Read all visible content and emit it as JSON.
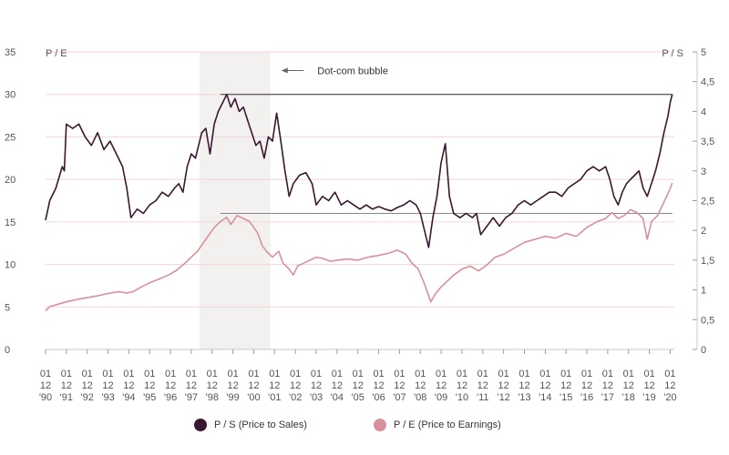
{
  "chart_data": {
    "type": "line",
    "left_axis_label": "P / E",
    "right_axis_label": "P / S",
    "y_left": {
      "min": 0,
      "max": 35,
      "ticks": [
        "0",
        "5",
        "10",
        "15",
        "20",
        "25",
        "30",
        "35"
      ]
    },
    "y_right": {
      "min": 0,
      "max": 5,
      "ticks": [
        "0",
        "0,5",
        "1",
        "1,5",
        "2",
        "2,5",
        "3",
        "3,5",
        "4",
        "4,5",
        "5"
      ]
    },
    "x_range": [
      1990.0,
      2020.2
    ],
    "x_tick_labels": [
      [
        "01",
        "12",
        "'90"
      ],
      [
        "01",
        "12",
        "'91"
      ],
      [
        "01",
        "12",
        "'92"
      ],
      [
        "01",
        "12",
        "'93"
      ],
      [
        "01",
        "12",
        "'94"
      ],
      [
        "01",
        "12",
        "'95"
      ],
      [
        "01",
        "12",
        "'96"
      ],
      [
        "01",
        "12",
        "'97"
      ],
      [
        "01",
        "12",
        "'98"
      ],
      [
        "01",
        "12",
        "'99"
      ],
      [
        "01",
        "12",
        "'00"
      ],
      [
        "01",
        "12",
        "'01"
      ],
      [
        "01",
        "12",
        "'02"
      ],
      [
        "01",
        "12",
        "'03"
      ],
      [
        "01",
        "12",
        "'04"
      ],
      [
        "01",
        "12",
        "'05"
      ],
      [
        "01",
        "12",
        "'06"
      ],
      [
        "01",
        "12",
        "'07"
      ],
      [
        "01",
        "12",
        "'08"
      ],
      [
        "01",
        "12",
        "'09"
      ],
      [
        "01",
        "12",
        "'10"
      ],
      [
        "01",
        "12",
        "'11"
      ],
      [
        "01",
        "12",
        "'12"
      ],
      [
        "01",
        "12",
        "'13"
      ],
      [
        "01",
        "12",
        "'14"
      ],
      [
        "01",
        "12",
        "'15"
      ],
      [
        "01",
        "12",
        "'16"
      ],
      [
        "01",
        "12",
        "'17"
      ],
      [
        "01",
        "12",
        "'18"
      ],
      [
        "01",
        "12",
        "'19"
      ],
      [
        "01",
        "12",
        "'20"
      ]
    ],
    "shaded_period": {
      "from": 1997.4,
      "to": 2000.8
    },
    "annotation": {
      "text": "Dot-com bubble",
      "arrow_from": 2002.4,
      "arrow_to": 2000.8,
      "y": 32.8
    },
    "reference_lines": [
      {
        "axis": "left",
        "value": 30,
        "from": 1998.4,
        "to": 2020.1
      },
      {
        "axis": "left",
        "value": 16,
        "from": 1998.4,
        "to": 2020.1
      }
    ],
    "series": [
      {
        "name": "P / S (Price to Sales)",
        "axis": "left",
        "color": "#3a1730",
        "points": [
          [
            1990.0,
            15.2
          ],
          [
            1990.2,
            17.5
          ],
          [
            1990.5,
            19.0
          ],
          [
            1990.8,
            21.5
          ],
          [
            1990.9,
            21.0
          ],
          [
            1991.0,
            26.5
          ],
          [
            1991.3,
            26.0
          ],
          [
            1991.6,
            26.5
          ],
          [
            1991.9,
            25.0
          ],
          [
            1992.2,
            24.0
          ],
          [
            1992.5,
            25.5
          ],
          [
            1992.8,
            23.5
          ],
          [
            1993.1,
            24.5
          ],
          [
            1993.4,
            23.0
          ],
          [
            1993.7,
            21.5
          ],
          [
            1993.9,
            19.0
          ],
          [
            1994.1,
            15.5
          ],
          [
            1994.4,
            16.5
          ],
          [
            1994.7,
            16.0
          ],
          [
            1995.0,
            17.0
          ],
          [
            1995.3,
            17.5
          ],
          [
            1995.6,
            18.5
          ],
          [
            1995.9,
            18.0
          ],
          [
            1996.2,
            19.0
          ],
          [
            1996.4,
            19.5
          ],
          [
            1996.6,
            18.5
          ],
          [
            1996.8,
            21.5
          ],
          [
            1997.0,
            23.0
          ],
          [
            1997.2,
            22.5
          ],
          [
            1997.5,
            25.5
          ],
          [
            1997.7,
            26.0
          ],
          [
            1997.9,
            23.0
          ],
          [
            1998.1,
            26.5
          ],
          [
            1998.3,
            28.0
          ],
          [
            1998.5,
            29.0
          ],
          [
            1998.7,
            30.0
          ],
          [
            1998.9,
            28.5
          ],
          [
            1999.1,
            29.5
          ],
          [
            1999.3,
            28.0
          ],
          [
            1999.5,
            28.5
          ],
          [
            1999.7,
            27.0
          ],
          [
            1999.9,
            25.5
          ],
          [
            2000.1,
            24.0
          ],
          [
            2000.3,
            24.5
          ],
          [
            2000.5,
            22.5
          ],
          [
            2000.7,
            25.0
          ],
          [
            2000.9,
            24.5
          ],
          [
            2001.1,
            27.8
          ],
          [
            2001.3,
            24.5
          ],
          [
            2001.5,
            21.0
          ],
          [
            2001.7,
            18.0
          ],
          [
            2001.9,
            19.5
          ],
          [
            2002.2,
            20.5
          ],
          [
            2002.5,
            20.8
          ],
          [
            2002.8,
            19.5
          ],
          [
            2003.0,
            17.0
          ],
          [
            2003.3,
            18.0
          ],
          [
            2003.6,
            17.5
          ],
          [
            2003.9,
            18.5
          ],
          [
            2004.2,
            17.0
          ],
          [
            2004.5,
            17.5
          ],
          [
            2004.8,
            17.0
          ],
          [
            2005.1,
            16.5
          ],
          [
            2005.4,
            17.0
          ],
          [
            2005.7,
            16.5
          ],
          [
            2006.0,
            16.8
          ],
          [
            2006.3,
            16.5
          ],
          [
            2006.6,
            16.3
          ],
          [
            2006.9,
            16.7
          ],
          [
            2007.2,
            17.0
          ],
          [
            2007.5,
            17.5
          ],
          [
            2007.8,
            17.0
          ],
          [
            2008.0,
            16.0
          ],
          [
            2008.2,
            14.0
          ],
          [
            2008.4,
            12.0
          ],
          [
            2008.6,
            15.5
          ],
          [
            2008.8,
            18.0
          ],
          [
            2009.0,
            22.0
          ],
          [
            2009.2,
            24.2
          ],
          [
            2009.4,
            18.0
          ],
          [
            2009.6,
            16.0
          ],
          [
            2009.9,
            15.5
          ],
          [
            2010.2,
            16.0
          ],
          [
            2010.5,
            15.5
          ],
          [
            2010.7,
            16.0
          ],
          [
            2010.9,
            13.5
          ],
          [
            2011.2,
            14.5
          ],
          [
            2011.5,
            15.5
          ],
          [
            2011.8,
            14.5
          ],
          [
            2012.1,
            15.5
          ],
          [
            2012.4,
            16.0
          ],
          [
            2012.7,
            17.0
          ],
          [
            2013.0,
            17.5
          ],
          [
            2013.3,
            17.0
          ],
          [
            2013.6,
            17.5
          ],
          [
            2013.9,
            18.0
          ],
          [
            2014.2,
            18.5
          ],
          [
            2014.5,
            18.5
          ],
          [
            2014.8,
            18.0
          ],
          [
            2015.1,
            19.0
          ],
          [
            2015.4,
            19.5
          ],
          [
            2015.7,
            20.0
          ],
          [
            2016.0,
            21.0
          ],
          [
            2016.3,
            21.5
          ],
          [
            2016.6,
            21.0
          ],
          [
            2016.9,
            21.5
          ],
          [
            2017.1,
            20.0
          ],
          [
            2017.3,
            18.0
          ],
          [
            2017.5,
            17.0
          ],
          [
            2017.7,
            18.5
          ],
          [
            2017.9,
            19.5
          ],
          [
            2018.1,
            20.0
          ],
          [
            2018.3,
            20.5
          ],
          [
            2018.5,
            21.0
          ],
          [
            2018.7,
            19.0
          ],
          [
            2018.9,
            18.0
          ],
          [
            2019.1,
            19.5
          ],
          [
            2019.3,
            21.0
          ],
          [
            2019.5,
            23.0
          ],
          [
            2019.7,
            25.5
          ],
          [
            2019.9,
            27.5
          ],
          [
            2020.0,
            29.0
          ],
          [
            2020.1,
            30.0
          ]
        ]
      },
      {
        "name": "P / E (Price to Earnings)",
        "axis": "right",
        "color": "#d9909c",
        "points": [
          [
            1990.0,
            0.65
          ],
          [
            1990.2,
            0.72
          ],
          [
            1990.6,
            0.76
          ],
          [
            1991.0,
            0.8
          ],
          [
            1991.5,
            0.84
          ],
          [
            1992.0,
            0.87
          ],
          [
            1992.5,
            0.9
          ],
          [
            1993.0,
            0.94
          ],
          [
            1993.5,
            0.97
          ],
          [
            1993.9,
            0.95
          ],
          [
            1994.2,
            0.97
          ],
          [
            1994.6,
            1.05
          ],
          [
            1995.0,
            1.12
          ],
          [
            1995.5,
            1.19
          ],
          [
            1995.9,
            1.25
          ],
          [
            1996.3,
            1.33
          ],
          [
            1996.7,
            1.45
          ],
          [
            1997.0,
            1.55
          ],
          [
            1997.3,
            1.65
          ],
          [
            1997.7,
            1.85
          ],
          [
            1997.9,
            1.95
          ],
          [
            1998.1,
            2.05
          ],
          [
            1998.4,
            2.15
          ],
          [
            1998.7,
            2.22
          ],
          [
            1998.9,
            2.1
          ],
          [
            1999.2,
            2.25
          ],
          [
            1999.5,
            2.2
          ],
          [
            1999.8,
            2.15
          ],
          [
            2000.0,
            2.05
          ],
          [
            2000.2,
            1.95
          ],
          [
            2000.4,
            1.75
          ],
          [
            2000.6,
            1.65
          ],
          [
            2000.9,
            1.55
          ],
          [
            2001.2,
            1.65
          ],
          [
            2001.4,
            1.45
          ],
          [
            2001.7,
            1.35
          ],
          [
            2001.9,
            1.25
          ],
          [
            2002.1,
            1.4
          ],
          [
            2002.4,
            1.45
          ],
          [
            2002.7,
            1.5
          ],
          [
            2003.0,
            1.55
          ],
          [
            2003.3,
            1.53
          ],
          [
            2003.7,
            1.48
          ],
          [
            2004.0,
            1.5
          ],
          [
            2004.5,
            1.52
          ],
          [
            2005.0,
            1.5
          ],
          [
            2005.5,
            1.55
          ],
          [
            2006.0,
            1.58
          ],
          [
            2006.5,
            1.62
          ],
          [
            2006.9,
            1.67
          ],
          [
            2007.3,
            1.6
          ],
          [
            2007.6,
            1.45
          ],
          [
            2007.9,
            1.35
          ],
          [
            2008.2,
            1.1
          ],
          [
            2008.5,
            0.8
          ],
          [
            2008.7,
            0.92
          ],
          [
            2009.0,
            1.05
          ],
          [
            2009.3,
            1.15
          ],
          [
            2009.6,
            1.25
          ],
          [
            2010.0,
            1.35
          ],
          [
            2010.4,
            1.4
          ],
          [
            2010.8,
            1.32
          ],
          [
            2011.2,
            1.42
          ],
          [
            2011.6,
            1.55
          ],
          [
            2012.0,
            1.6
          ],
          [
            2012.5,
            1.7
          ],
          [
            2013.0,
            1.8
          ],
          [
            2013.5,
            1.85
          ],
          [
            2014.0,
            1.9
          ],
          [
            2014.5,
            1.87
          ],
          [
            2015.0,
            1.95
          ],
          [
            2015.5,
            1.9
          ],
          [
            2016.0,
            2.05
          ],
          [
            2016.5,
            2.15
          ],
          [
            2016.9,
            2.2
          ],
          [
            2017.2,
            2.3
          ],
          [
            2017.5,
            2.2
          ],
          [
            2017.8,
            2.25
          ],
          [
            2018.1,
            2.35
          ],
          [
            2018.4,
            2.3
          ],
          [
            2018.7,
            2.2
          ],
          [
            2018.9,
            1.85
          ],
          [
            2019.1,
            2.15
          ],
          [
            2019.4,
            2.25
          ],
          [
            2019.6,
            2.4
          ],
          [
            2019.8,
            2.55
          ],
          [
            2020.0,
            2.7
          ],
          [
            2020.1,
            2.8
          ]
        ]
      }
    ],
    "grid": {
      "horizontal": true,
      "color": "#f2d5da"
    },
    "legend_position": "bottom-center"
  }
}
